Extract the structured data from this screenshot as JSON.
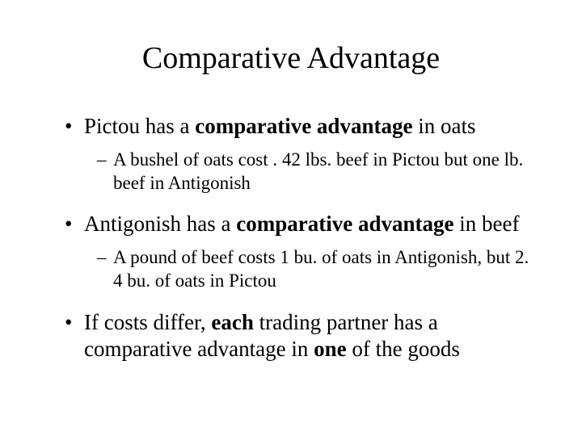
{
  "background_color": "#ffffff",
  "text_color": "#000000",
  "font_family": "Times New Roman",
  "title": {
    "text": "Comparative Advantage",
    "fontsize": 38,
    "align": "center"
  },
  "bullets": [
    {
      "level": 1,
      "marker": "•",
      "segments": [
        {
          "text": "Pictou has a ",
          "bold": false
        },
        {
          "text": "comparative advantage",
          "bold": true
        },
        {
          "text": " in oats",
          "bold": false
        }
      ]
    },
    {
      "level": 2,
      "marker": "–",
      "segments": [
        {
          "text": "A bushel of oats cost . 42 lbs. beef in Pictou but one lb. beef in Antigonish",
          "bold": false
        }
      ]
    },
    {
      "level": 1,
      "marker": "•",
      "segments": [
        {
          "text": "Antigonish has a ",
          "bold": false
        },
        {
          "text": "comparative advantage",
          "bold": true
        },
        {
          "text": " in beef",
          "bold": false
        }
      ]
    },
    {
      "level": 2,
      "marker": "–",
      "segments": [
        {
          "text": "A pound of beef costs 1 bu. of oats in Antigonish, but 2. 4 bu. of oats in Pictou",
          "bold": false
        }
      ]
    },
    {
      "level": 1,
      "marker": "•",
      "segments": [
        {
          "text": "If costs differ, ",
          "bold": false
        },
        {
          "text": "each",
          "bold": true
        },
        {
          "text": " trading partner has a comparative advantage in ",
          "bold": false
        },
        {
          "text": "one",
          "bold": true
        },
        {
          "text": " of the goods",
          "bold": false
        }
      ]
    }
  ]
}
